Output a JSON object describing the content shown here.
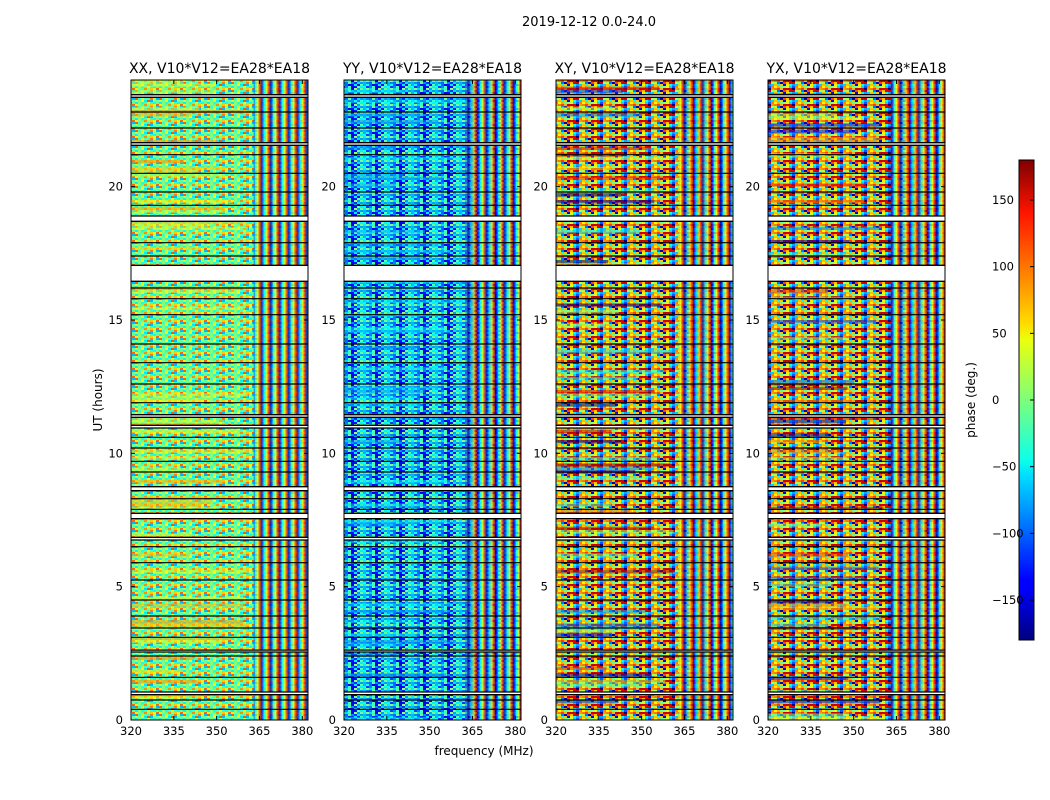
{
  "figure_title": "2019-12-12 0.0-24.0",
  "chart_data": {
    "type": "heatmap",
    "suptitle": "2019-12-12 0.0-24.0",
    "xlabel": "frequency (MHz)",
    "ylabel": "UT (hours)",
    "xlim": [
      320,
      382
    ],
    "ylim": [
      0,
      24
    ],
    "x_ticks": [
      320,
      335,
      350,
      365,
      380
    ],
    "y_ticks": [
      0,
      5,
      10,
      15,
      20
    ],
    "panels": [
      {
        "title": "XX, V10*V12=EA28*EA18",
        "pol": "XX"
      },
      {
        "title": "YY, V10*V12=EA28*EA18",
        "pol": "YY"
      },
      {
        "title": "XY, V10*V12=EA28*EA18",
        "pol": "XY"
      },
      {
        "title": "YX, V10*V12=EA28*EA18",
        "pol": "YX"
      }
    ],
    "colorbar": {
      "label": "phase (deg.)",
      "range": [
        -180,
        180
      ],
      "ticks": [
        -150,
        -100,
        -50,
        0,
        50,
        100,
        150
      ],
      "colormap": "jet"
    },
    "blank_bands_hours": [
      [
        0.95,
        1.05
      ],
      [
        2.55,
        2.62
      ],
      [
        6.75,
        6.85
      ],
      [
        7.55,
        7.75
      ],
      [
        8.6,
        8.75
      ],
      [
        10.95,
        11.05
      ],
      [
        11.35,
        11.45
      ],
      [
        16.45,
        17.05
      ],
      [
        18.7,
        18.9
      ],
      [
        21.55,
        21.65
      ],
      [
        23.35,
        23.45
      ]
    ],
    "flagged_lines_hours": [
      0.4,
      0.75,
      1.6,
      2.4,
      3.1,
      3.45,
      3.9,
      4.5,
      5.25,
      5.9,
      6.5,
      7.9,
      8.3,
      9.3,
      9.7,
      10.2,
      10.6,
      11.9,
      12.6,
      13.4,
      14.1,
      15.2,
      15.8,
      16.2,
      17.4,
      17.9,
      19.3,
      19.8,
      20.5,
      21.2,
      22.2,
      22.8
    ]
  }
}
